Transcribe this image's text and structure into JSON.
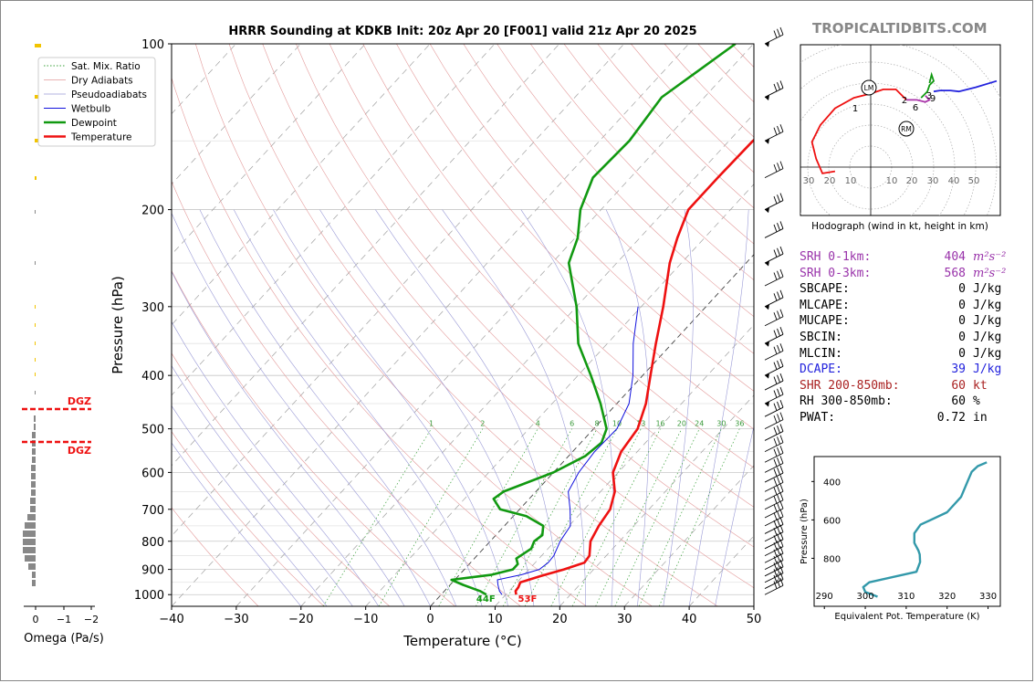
{
  "brand": "TROPICALTIDBITS.COM",
  "chart_data": [
    {
      "type": "skew-t",
      "title": "HRRR Sounding at KDKB Init: 20z Apr 20 [F001] valid 21z Apr 20 2025",
      "xlabel": "Temperature (°C)",
      "ylabel": "Pressure (hPa)",
      "xlim": [
        -40,
        50
      ],
      "ylim": [
        1050,
        100
      ],
      "y_scale": "log",
      "xticks": [
        -40,
        -30,
        -20,
        -10,
        0,
        10,
        20,
        30,
        40,
        50
      ],
      "yticks": [
        100,
        200,
        300,
        400,
        500,
        600,
        700,
        800,
        900,
        1000
      ],
      "legend_position": "top-left",
      "legend": [
        "Sat. Mix. Ratio",
        "Dry Adiabats",
        "Pseudoadiabats",
        "Wetbulb",
        "Dewpoint",
        "Temperature"
      ],
      "mixing_ratio_labels": [
        "1",
        "2",
        "4",
        "6",
        "8",
        "10",
        "13",
        "16",
        "20",
        "24",
        "30",
        "36"
      ],
      "surface_dewpoint_label": "44F",
      "surface_temperature_label": "53F",
      "series": [
        {
          "name": "Temperature",
          "color": "#ee1111",
          "points": [
            [
              1000,
              11.6
            ],
            [
              985,
              11
            ],
            [
              970,
              10.9
            ],
            [
              950,
              10.5
            ],
            [
              925,
              12.8
            ],
            [
              900,
              15.4
            ],
            [
              875,
              17.6
            ],
            [
              850,
              17.4
            ],
            [
              800,
              15.5
            ],
            [
              750,
              14.6
            ],
            [
              700,
              14
            ],
            [
              650,
              12.2
            ],
            [
              600,
              9.2
            ],
            [
              550,
              7.5
            ],
            [
              500,
              6.8
            ],
            [
              450,
              4.5
            ],
            [
              400,
              1.2
            ],
            [
              350,
              -2.5
            ],
            [
              300,
              -6.6
            ],
            [
              250,
              -11.8
            ],
            [
              225,
              -14.2
            ],
            [
              200,
              -16.5
            ],
            [
              175,
              -16.5
            ],
            [
              150,
              -16.3
            ],
            [
              125,
              -14.6
            ],
            [
              110,
              -8
            ],
            [
              100,
              -4
            ]
          ]
        },
        {
          "name": "Dewpoint",
          "color": "#119911",
          "points": [
            [
              1000,
              7
            ],
            [
              985,
              5.5
            ],
            [
              960,
              2
            ],
            [
              940,
              -0.5
            ],
            [
              920,
              5
            ],
            [
              900,
              7.5
            ],
            [
              880,
              7.5
            ],
            [
              860,
              6.5
            ],
            [
              825,
              7.4
            ],
            [
              800,
              6.8
            ],
            [
              780,
              7.2
            ],
            [
              750,
              6
            ],
            [
              720,
              2
            ],
            [
              700,
              -3
            ],
            [
              670,
              -5.5
            ],
            [
              650,
              -5
            ],
            [
              600,
              0
            ],
            [
              560,
              2.6
            ],
            [
              530,
              3.2
            ],
            [
              500,
              2
            ],
            [
              450,
              -2.5
            ],
            [
              400,
              -8
            ],
            [
              350,
              -14.5
            ],
            [
              300,
              -20
            ],
            [
              250,
              -27.4
            ],
            [
              225,
              -29.6
            ],
            [
              200,
              -33.2
            ],
            [
              175,
              -35.8
            ],
            [
              150,
              -35.4
            ],
            [
              125,
              -36.6
            ],
            [
              100,
              -32.8
            ]
          ]
        },
        {
          "name": "Wetbulb",
          "color": "#1111dd",
          "points": [
            [
              1000,
              9.4
            ],
            [
              985,
              8.5
            ],
            [
              960,
              7.4
            ],
            [
              940,
              6.6
            ],
            [
              920,
              9.6
            ],
            [
              900,
              11.6
            ],
            [
              875,
              12
            ],
            [
              850,
              11.9
            ],
            [
              800,
              10.8
            ],
            [
              750,
              10.2
            ],
            [
              700,
              7.8
            ],
            [
              650,
              5
            ],
            [
              600,
              3.9
            ],
            [
              550,
              3.4
            ],
            [
              500,
              3.6
            ],
            [
              450,
              1.9
            ],
            [
              400,
              -1.5
            ],
            [
              350,
              -6
            ],
            [
              300,
              -10.5
            ]
          ]
        }
      ],
      "wind_barb_column": "right of skew-t"
    },
    {
      "type": "hodograph",
      "title": "Hodograph (wind in kt, height in km)",
      "x_tick_labels": [
        "30",
        "20",
        "10",
        "10",
        "20",
        "30",
        "40",
        "50"
      ],
      "height_labels": [
        "1",
        "2",
        "3",
        "6",
        "9"
      ],
      "markers": [
        "LM",
        "RM"
      ],
      "curve_colors": [
        "#ee1111",
        "#aa33aa",
        "#119911",
        "#2222dd"
      ]
    },
    {
      "type": "line",
      "title": "Equivalent Pot. Temperature (K)",
      "xlabel": "Equivalent Pot. Temperature (K)",
      "ylabel": "Pressure (hPa)",
      "xticks": [
        290,
        300,
        310,
        320,
        330
      ],
      "yticks": [
        400,
        600,
        800
      ],
      "color": "#3399aa",
      "x": [
        303,
        300,
        299.5,
        301,
        312.5,
        313.4,
        313.3,
        313,
        312,
        312,
        313.5,
        320,
        323.4,
        325,
        326,
        327.5,
        329.7
      ],
      "y": [
        1000,
        975,
        950,
        925,
        870,
        820,
        780,
        760,
        720,
        670,
        625,
        560,
        480,
        400,
        350,
        320,
        300
      ]
    },
    {
      "type": "bar",
      "title": "Omega (Pa/s)",
      "xlabel": "Omega (Pa/s)",
      "xticks": [
        "0",
        "−1",
        "−2"
      ],
      "dgz_labels": [
        "DGZ",
        "DGZ"
      ]
    }
  ],
  "stats": [
    {
      "label": "SRH 0-1km:",
      "value": "404",
      "unit": "m²s⁻²",
      "color": "#9933aa"
    },
    {
      "label": "SRH 0-3km:",
      "value": "568",
      "unit": "m²s⁻²",
      "color": "#9933aa"
    },
    {
      "label": "SBCAPE:",
      "value": "0",
      "unit": "J/kg",
      "color": "#000000"
    },
    {
      "label": "MLCAPE:",
      "value": "0",
      "unit": "J/kg",
      "color": "#000000"
    },
    {
      "label": "MUCAPE:",
      "value": "0",
      "unit": "J/kg",
      "color": "#000000"
    },
    {
      "label": "SBCIN:",
      "value": "0",
      "unit": "J/kg",
      "color": "#000000"
    },
    {
      "label": "MLCIN:",
      "value": "0",
      "unit": "J/kg",
      "color": "#000000"
    },
    {
      "label": "DCAPE:",
      "value": "39",
      "unit": "J/kg",
      "color": "#2222dd"
    },
    {
      "label": "SHR 200-850mb:",
      "value": "60",
      "unit": "kt",
      "color": "#aa2222"
    },
    {
      "label": "RH 300-850mb:",
      "value": "60",
      "unit": "%",
      "color": "#000000"
    },
    {
      "label": "PWAT:",
      "value": "0.72",
      "unit": "in",
      "color": "#000000"
    }
  ]
}
